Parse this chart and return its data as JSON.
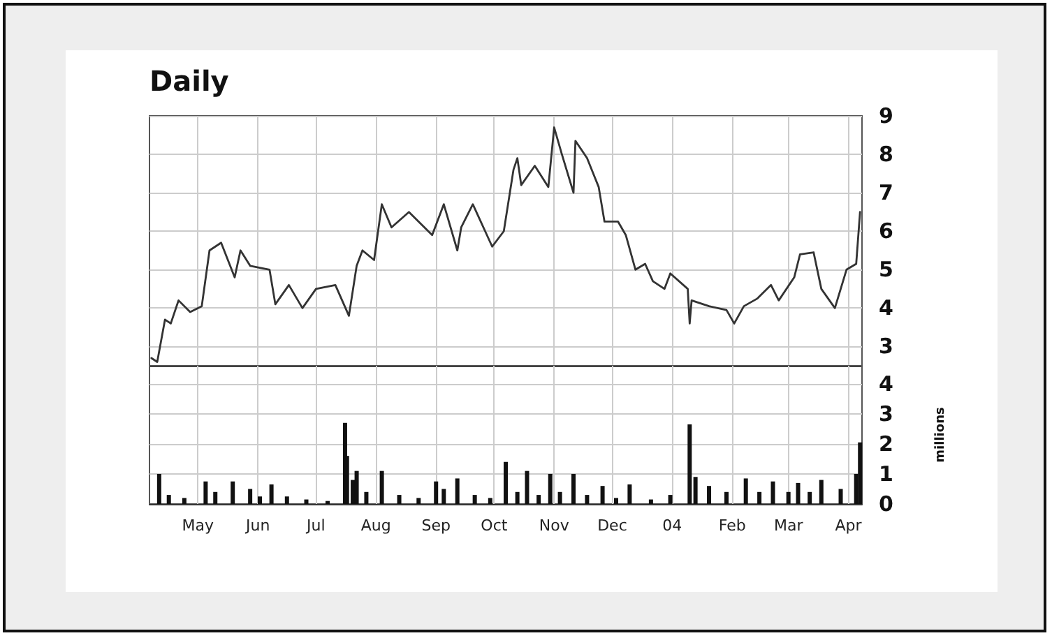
{
  "chart_data": [
    {
      "type": "line",
      "title": "Daily",
      "marker": "none",
      "line_style": "solid",
      "grid": true,
      "tick_labels": "y",
      "xlim": [
        "2003-04-06",
        "2004-04-08"
      ],
      "xticks": [
        {
          "value": "2003-05-01",
          "label": null
        },
        {
          "value": "2003-06-01",
          "label": null
        },
        {
          "value": "2003-07-01",
          "label": null
        },
        {
          "value": "2003-08-01",
          "label": null
        },
        {
          "value": "2003-09-01",
          "label": null
        },
        {
          "value": "2003-10-01",
          "label": null
        },
        {
          "value": "2003-11-01",
          "label": null
        },
        {
          "value": "2003-12-01",
          "label": null
        },
        {
          "value": "2004-01-01",
          "label": null
        },
        {
          "value": "2004-02-01",
          "label": null
        },
        {
          "value": "2004-03-01",
          "label": null
        },
        {
          "value": "2004-04-01",
          "label": null
        }
      ],
      "ylim": [
        2.5,
        9
      ],
      "yticks": [
        3,
        4,
        5,
        6,
        7,
        8,
        9
      ],
      "x": [
        "2003-04-07",
        "2003-04-10",
        "2003-04-14",
        "2003-04-17",
        "2003-04-21",
        "2003-04-27",
        "2003-05-03",
        "2003-05-07",
        "2003-05-13",
        "2003-05-20",
        "2003-05-23",
        "2003-05-28",
        "2003-06-07",
        "2003-06-10",
        "2003-06-17",
        "2003-06-24",
        "2003-07-01",
        "2003-07-11",
        "2003-07-18",
        "2003-07-22",
        "2003-07-25",
        "2003-07-31",
        "2003-08-04",
        "2003-08-09",
        "2003-08-18",
        "2003-08-30",
        "2003-09-05",
        "2003-09-12",
        "2003-09-14",
        "2003-09-20",
        "2003-09-30",
        "2003-10-06",
        "2003-10-11",
        "2003-10-13",
        "2003-10-15",
        "2003-10-22",
        "2003-10-29",
        "2003-11-01",
        "2003-11-05",
        "2003-11-11",
        "2003-11-12",
        "2003-11-18",
        "2003-11-24",
        "2003-11-27",
        "2003-12-04",
        "2003-12-08",
        "2003-12-13",
        "2003-12-18",
        "2003-12-22",
        "2003-12-28",
        "2003-12-31",
        "2004-01-09",
        "2004-01-10",
        "2004-01-11",
        "2004-01-20",
        "2004-01-29",
        "2004-02-02",
        "2004-02-07",
        "2004-02-14",
        "2004-02-21",
        "2004-02-25",
        "2004-03-04",
        "2004-03-07",
        "2004-03-14",
        "2004-03-18",
        "2004-03-25",
        "2004-03-31",
        "2004-04-05",
        "2004-04-07"
      ],
      "series": [
        {
          "color": "#333333",
          "values": [
            2.7,
            2.6,
            3.7,
            3.6,
            4.2,
            3.9,
            4.05,
            5.5,
            5.7,
            4.8,
            5.5,
            5.1,
            5.0,
            4.1,
            4.6,
            4.0,
            4.5,
            4.6,
            3.8,
            5.1,
            5.5,
            5.25,
            6.7,
            6.1,
            6.5,
            5.9,
            6.7,
            5.5,
            6.1,
            6.7,
            5.6,
            6.0,
            7.6,
            7.9,
            7.2,
            7.7,
            7.15,
            8.7,
            8.0,
            7.0,
            8.35,
            7.9,
            7.15,
            6.25,
            6.25,
            5.9,
            5.0,
            5.15,
            4.7,
            4.5,
            4.9,
            4.5,
            3.6,
            4.2,
            4.05,
            3.95,
            3.6,
            4.05,
            4.25,
            4.6,
            4.2,
            4.8,
            5.4,
            5.45,
            4.5,
            4.0,
            5.0,
            5.15,
            6.5
          ]
        }
      ]
    },
    {
      "type": "bar",
      "ylabel": "millions",
      "grid": true,
      "xlim": [
        "2003-04-06",
        "2004-04-08"
      ],
      "xticks": [
        {
          "value": "2003-05-01",
          "label": "May"
        },
        {
          "value": "2003-06-01",
          "label": "Jun"
        },
        {
          "value": "2003-07-01",
          "label": "Jul"
        },
        {
          "value": "2003-08-01",
          "label": "Aug"
        },
        {
          "value": "2003-09-01",
          "label": "Sep"
        },
        {
          "value": "2003-10-01",
          "label": "Oct"
        },
        {
          "value": "2003-11-01",
          "label": "Nov"
        },
        {
          "value": "2003-12-01",
          "label": "Dec"
        },
        {
          "value": "2004-01-01",
          "label": "04"
        },
        {
          "value": "2004-02-01",
          "label": "Feb"
        },
        {
          "value": "2004-03-01",
          "label": "Mar"
        },
        {
          "value": "2004-04-01",
          "label": "Apr"
        }
      ],
      "ylim": [
        0,
        4.6
      ],
      "yticks": [
        0,
        1,
        2,
        3,
        4
      ],
      "x": [
        "2003-04-11",
        "2003-04-16",
        "2003-04-24",
        "2003-05-05",
        "2003-05-10",
        "2003-05-19",
        "2003-05-28",
        "2003-06-02",
        "2003-06-08",
        "2003-06-16",
        "2003-06-26",
        "2003-07-07",
        "2003-07-16",
        "2003-07-17",
        "2003-07-20",
        "2003-07-22",
        "2003-07-27",
        "2003-08-04",
        "2003-08-13",
        "2003-08-23",
        "2003-09-01",
        "2003-09-05",
        "2003-09-12",
        "2003-09-21",
        "2003-09-29",
        "2003-10-07",
        "2003-10-13",
        "2003-10-18",
        "2003-10-24",
        "2003-10-30",
        "2003-11-04",
        "2003-11-11",
        "2003-11-18",
        "2003-11-26",
        "2003-12-03",
        "2003-12-10",
        "2003-12-21",
        "2003-12-31",
        "2004-01-10",
        "2004-01-13",
        "2004-01-20",
        "2004-01-29",
        "2004-02-08",
        "2004-02-15",
        "2004-02-22",
        "2004-03-01",
        "2004-03-06",
        "2004-03-12",
        "2004-03-18",
        "2004-03-28",
        "2004-04-05",
        "2004-04-07"
      ],
      "series": [
        {
          "color": "#111111",
          "values": [
            1.0,
            0.3,
            0.2,
            0.75,
            0.4,
            0.75,
            0.5,
            0.25,
            0.65,
            0.25,
            0.15,
            0.1,
            2.7,
            1.6,
            0.8,
            1.1,
            0.4,
            1.1,
            0.3,
            0.2,
            0.75,
            0.5,
            0.85,
            0.3,
            0.2,
            1.4,
            0.4,
            1.1,
            0.3,
            1.0,
            0.4,
            1.0,
            0.3,
            0.6,
            0.2,
            0.65,
            0.15,
            0.3,
            2.65,
            0.9,
            0.6,
            0.4,
            0.85,
            0.4,
            0.75,
            0.4,
            0.7,
            0.4,
            0.8,
            0.5,
            1.0,
            2.05
          ]
        }
      ]
    }
  ]
}
